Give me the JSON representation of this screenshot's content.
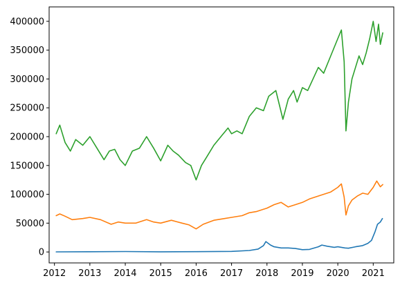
{
  "chart_data": {
    "type": "line",
    "title": "",
    "xlabel": "",
    "ylabel": "",
    "xlim": [
      2011.85,
      2021.58
    ],
    "ylim": [
      -19000,
      425000
    ],
    "x_ticks": [
      2012,
      2013,
      2014,
      2015,
      2016,
      2017,
      2018,
      2019,
      2020,
      2021
    ],
    "x_tick_labels": [
      "2012",
      "2013",
      "2014",
      "2015",
      "2016",
      "2017",
      "2018",
      "2019",
      "2020",
      "2021"
    ],
    "y_ticks": [
      0,
      50000,
      100000,
      150000,
      200000,
      250000,
      300000,
      350000,
      400000
    ],
    "y_tick_labels": [
      "0",
      "50000",
      "100000",
      "150000",
      "200000",
      "250000",
      "300000",
      "350000",
      "400000"
    ],
    "grid": false,
    "legend": "none",
    "series": [
      {
        "color": "#1f77b4",
        "x": [
          2012.05,
          2013.0,
          2014.0,
          2015.0,
          2016.0,
          2017.0,
          2017.5,
          2017.75,
          2017.9,
          2017.97,
          2018.1,
          2018.2,
          2018.4,
          2018.6,
          2018.8,
          2019.0,
          2019.2,
          2019.45,
          2019.55,
          2019.7,
          2019.9,
          2020.0,
          2020.2,
          2020.3,
          2020.5,
          2020.7,
          2020.85,
          2020.95,
          2021.05,
          2021.12,
          2021.2,
          2021.26
        ],
        "y": [
          200,
          400,
          800,
          300,
          500,
          1000,
          2500,
          5000,
          11000,
          18000,
          12000,
          9000,
          7000,
          7000,
          6000,
          4000,
          4500,
          9000,
          12000,
          10000,
          8000,
          9000,
          7000,
          6500,
          9000,
          11000,
          15000,
          20000,
          35000,
          48000,
          52000,
          58000
        ]
      },
      {
        "color": "#ff7f0e",
        "x": [
          2012.05,
          2012.15,
          2012.3,
          2012.5,
          2012.8,
          2013.0,
          2013.3,
          2013.6,
          2013.8,
          2014.0,
          2014.3,
          2014.6,
          2014.8,
          2015.0,
          2015.3,
          2015.6,
          2015.8,
          2016.0,
          2016.2,
          2016.5,
          2016.8,
          2017.0,
          2017.3,
          2017.5,
          2017.7,
          2018.0,
          2018.2,
          2018.4,
          2018.6,
          2018.8,
          2019.0,
          2019.2,
          2019.5,
          2019.8,
          2020.0,
          2020.1,
          2020.18,
          2020.23,
          2020.3,
          2020.4,
          2020.55,
          2020.7,
          2020.85,
          2021.0,
          2021.1,
          2021.2,
          2021.27
        ],
        "y": [
          63000,
          66000,
          62000,
          56000,
          58000,
          60000,
          56000,
          48000,
          52000,
          50000,
          50000,
          56000,
          52000,
          50000,
          55000,
          50000,
          47000,
          40000,
          48000,
          55000,
          58000,
          60000,
          63000,
          68000,
          70000,
          76000,
          82000,
          86000,
          78000,
          82000,
          86000,
          92000,
          98000,
          104000,
          112000,
          118000,
          95000,
          64000,
          80000,
          90000,
          97000,
          102000,
          100000,
          112000,
          123000,
          113000,
          117000
        ]
      },
      {
        "color": "#2ca02c",
        "x": [
          2012.05,
          2012.15,
          2012.3,
          2012.45,
          2012.6,
          2012.8,
          2013.0,
          2013.2,
          2013.4,
          2013.55,
          2013.7,
          2013.85,
          2014.0,
          2014.2,
          2014.4,
          2014.6,
          2014.8,
          2015.0,
          2015.2,
          2015.35,
          2015.5,
          2015.7,
          2015.85,
          2016.0,
          2016.15,
          2016.3,
          2016.5,
          2016.7,
          2016.9,
          2017.0,
          2017.15,
          2017.3,
          2017.5,
          2017.7,
          2017.9,
          2018.05,
          2018.25,
          2018.35,
          2018.45,
          2018.6,
          2018.75,
          2018.85,
          2019.0,
          2019.15,
          2019.3,
          2019.45,
          2019.6,
          2019.8,
          2020.0,
          2020.1,
          2020.18,
          2020.23,
          2020.3,
          2020.4,
          2020.5,
          2020.6,
          2020.7,
          2020.8,
          2020.9,
          2021.0,
          2021.08,
          2021.15,
          2021.2,
          2021.27
        ],
        "y": [
          205000,
          220000,
          190000,
          175000,
          195000,
          185000,
          200000,
          180000,
          160000,
          175000,
          178000,
          160000,
          150000,
          175000,
          180000,
          200000,
          180000,
          158000,
          185000,
          175000,
          168000,
          155000,
          150000,
          125000,
          150000,
          165000,
          185000,
          200000,
          215000,
          205000,
          210000,
          205000,
          235000,
          250000,
          245000,
          270000,
          280000,
          255000,
          230000,
          265000,
          280000,
          260000,
          285000,
          280000,
          300000,
          320000,
          310000,
          340000,
          370000,
          385000,
          330000,
          210000,
          260000,
          300000,
          320000,
          340000,
          325000,
          345000,
          370000,
          400000,
          365000,
          395000,
          360000,
          380000
        ]
      }
    ]
  }
}
